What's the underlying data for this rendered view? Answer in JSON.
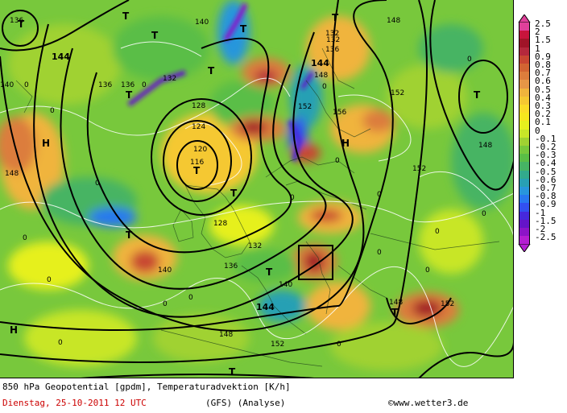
{
  "caption": {
    "line1": "850 hPa Geopotential [gpdm], Temperaturadvektion [K/h]",
    "date": "Dienstag, 25-10-2011  12 UTC",
    "model": "(GFS)  (Analyse)",
    "copyright": "©www.wetter3.de"
  },
  "legend": {
    "entries": [
      {
        "label": "2.5",
        "color": "#e0409a"
      },
      {
        "label": "2",
        "color": "#c8143c"
      },
      {
        "label": "1.5",
        "color": "#a01428"
      },
      {
        "label": "1",
        "color": "#b4283c"
      },
      {
        "label": "0.9",
        "color": "#c84632"
      },
      {
        "label": "0.8",
        "color": "#d26432"
      },
      {
        "label": "0.7",
        "color": "#dc7d3c"
      },
      {
        "label": "0.6",
        "color": "#e69646"
      },
      {
        "label": "0.5",
        "color": "#f0b43c"
      },
      {
        "label": "0.4",
        "color": "#f5c832"
      },
      {
        "label": "0.3",
        "color": "#fadc28"
      },
      {
        "label": "0.2",
        "color": "#f5e61e"
      },
      {
        "label": "0.1",
        "color": "#e6f01e"
      },
      {
        "label": "0",
        "color": "#c8e628"
      },
      {
        "label": "-0.1",
        "color": "#a0d232"
      },
      {
        "label": "-0.2",
        "color": "#78c83c"
      },
      {
        "label": "-0.3",
        "color": "#5abe46"
      },
      {
        "label": "-0.4",
        "color": "#46b464"
      },
      {
        "label": "-0.5",
        "color": "#32aa8c"
      },
      {
        "label": "-0.6",
        "color": "#28a0b4"
      },
      {
        "label": "-0.7",
        "color": "#2896dc"
      },
      {
        "label": "-0.8",
        "color": "#2878f0"
      },
      {
        "label": "-0.9",
        "color": "#3250f0"
      },
      {
        "label": "-1",
        "color": "#4628dc"
      },
      {
        "label": "-1.5",
        "color": "#6414c8"
      },
      {
        "label": "-2",
        "color": "#8c14c8"
      },
      {
        "label": "-2.5",
        "color": "#b41ed2"
      }
    ]
  },
  "contour_labels": [
    "136",
    "140",
    "132",
    "132",
    "136",
    "148",
    "144",
    "148",
    "152",
    "156",
    "152",
    "152",
    "148",
    "144",
    "140",
    "136",
    "128",
    "124",
    "120",
    "116",
    "128",
    "132",
    "136",
    "140",
    "144",
    "148",
    "152",
    "148",
    "140",
    "136",
    "132",
    "148",
    "152"
  ],
  "pressure_centers": [
    "T",
    "T",
    "T",
    "T",
    "T",
    "T",
    "T",
    "T",
    "T",
    "T",
    "T",
    "T",
    "T",
    "T",
    "H",
    "H",
    "H"
  ]
}
